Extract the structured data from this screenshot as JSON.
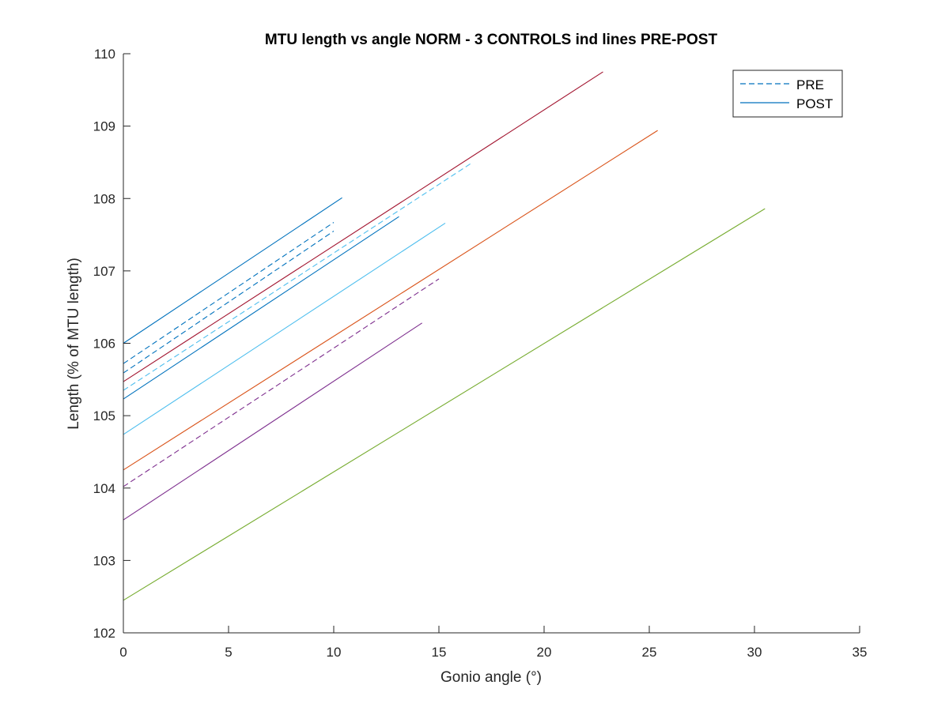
{
  "chart_data": {
    "type": "line",
    "title": "MTU length vs angle NORM - 3 CONTROLS ind lines PRE-POST",
    "xlabel": "Gonio angle (°)",
    "ylabel": "Length (% of MTU length)",
    "xlim": [
      0,
      35
    ],
    "ylim": [
      102,
      110
    ],
    "xticks": [
      0,
      5,
      10,
      15,
      20,
      25,
      30,
      35
    ],
    "yticks": [
      102,
      103,
      104,
      105,
      106,
      107,
      108,
      109,
      110
    ],
    "grid": false,
    "legend": {
      "placement": "top-right",
      "entries": [
        {
          "label": "PRE",
          "style": "dashed",
          "color": "#0072BD"
        },
        {
          "label": "POST",
          "style": "solid",
          "color": "#0072BD"
        }
      ]
    },
    "series": [
      {
        "style": "solid",
        "color": "#0072BD",
        "x": [
          0,
          10.4
        ],
        "y": [
          106.0,
          108.01
        ]
      },
      {
        "style": "dashed",
        "color": "#0072BD",
        "x": [
          0,
          10.0
        ],
        "y": [
          105.72,
          107.67
        ]
      },
      {
        "style": "dashed",
        "color": "#4DBEEE",
        "x": [
          0,
          16.5
        ],
        "y": [
          105.35,
          108.48
        ]
      },
      {
        "style": "solid",
        "color": "#A2142F",
        "x": [
          0,
          22.8
        ],
        "y": [
          105.47,
          109.75
        ]
      },
      {
        "style": "dashed",
        "color": "#0072BD",
        "x": [
          0,
          10.0
        ],
        "y": [
          105.59,
          107.55
        ]
      },
      {
        "style": "solid",
        "color": "#0072BD",
        "x": [
          0,
          13.1
        ],
        "y": [
          105.23,
          107.75
        ]
      },
      {
        "style": "solid",
        "color": "#4DBEEE",
        "x": [
          0,
          15.3
        ],
        "y": [
          104.74,
          107.66
        ]
      },
      {
        "style": "solid",
        "color": "#D95319",
        "x": [
          0,
          25.4
        ],
        "y": [
          104.25,
          108.94
        ]
      },
      {
        "style": "dashed",
        "color": "#7E2F8E",
        "x": [
          0,
          15.0
        ],
        "y": [
          104.02,
          106.89
        ]
      },
      {
        "style": "solid",
        "color": "#7E2F8E",
        "x": [
          0,
          14.2
        ],
        "y": [
          103.56,
          106.28
        ]
      },
      {
        "style": "solid",
        "color": "#77AC30",
        "x": [
          0,
          30.5
        ],
        "y": [
          102.45,
          107.86
        ]
      }
    ]
  }
}
